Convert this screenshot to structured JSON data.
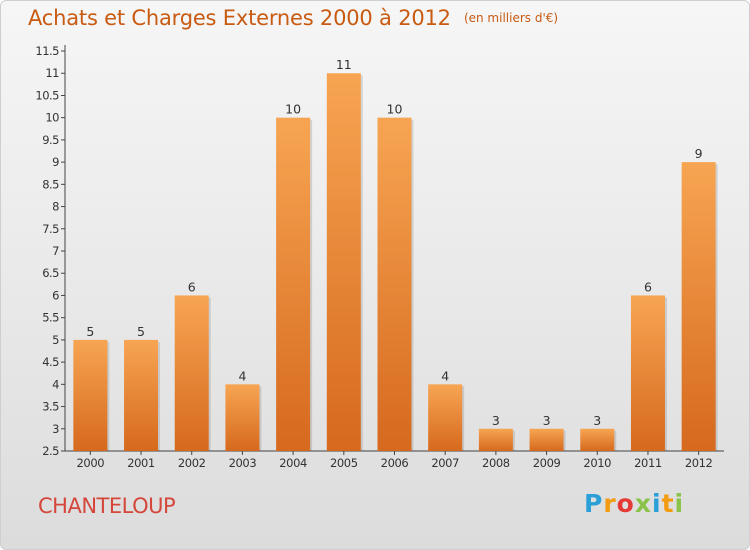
{
  "header": {
    "title": "Achats et Charges Externes 2000 à 2012",
    "unit": "(en milliers d'€)"
  },
  "commune": "CHANTELOUP",
  "logo": {
    "text": "Proxiti",
    "colors": [
      "#2a9fd8",
      "#f39c12",
      "#e53935",
      "#8bc34a",
      "#2a9fd8",
      "#f39c12",
      "#8bc34a"
    ]
  },
  "chart_data": {
    "type": "bar",
    "title": "Achats et Charges Externes 2000 à 2012",
    "categories": [
      "2000",
      "2001",
      "2002",
      "2003",
      "2004",
      "2005",
      "2006",
      "2007",
      "2008",
      "2009",
      "2010",
      "2011",
      "2012"
    ],
    "values": [
      5,
      5,
      6,
      4,
      10,
      11,
      10,
      4,
      3,
      3,
      3,
      6,
      9
    ],
    "ylim": [
      2.5,
      11.5
    ],
    "yticks": [
      "2.5",
      "3",
      "3.5",
      "4",
      "4.5",
      "5",
      "5.5",
      "6",
      "6.5",
      "7",
      "7.5",
      "8",
      "8.5",
      "9",
      "9.5",
      "10",
      "10.5",
      "11",
      "11.5"
    ],
    "grid": false,
    "bar_color_top": "#f7a552",
    "bar_color_bottom": "#d6691e",
    "label_color": "#333333"
  }
}
